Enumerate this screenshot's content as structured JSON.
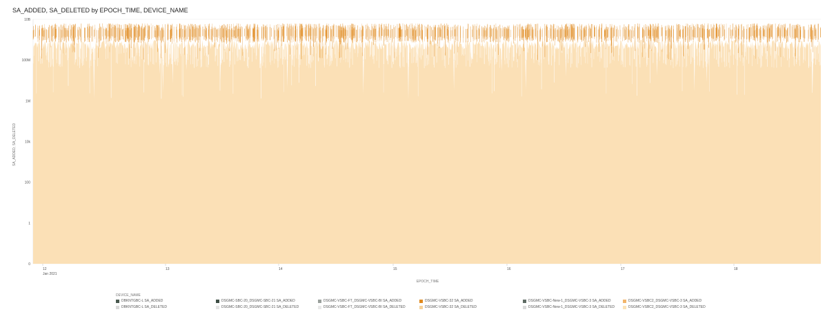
{
  "title": "SA_ADDED, SA_DELETED by EPOCH_TIME, DEVICE_NAME",
  "legend_title": "DEVICE_NAME",
  "legend": [
    {
      "label": "DBKNTGBC-L SA_ADDED",
      "color": "#4a5a50"
    },
    {
      "label": "DBKNTGBC-L SA_DELETED",
      "color": "#d9d9d9"
    },
    {
      "label": "DSGMC-SBC-20_DSGMC-SBC-21 SA_ADDED",
      "color": "#3f4f46"
    },
    {
      "label": "DSGMC-SBC-20_DSGMC-SBC-21 SA_DELETED",
      "color": "#e4e4e4"
    },
    {
      "label": "DSGMC-VSBC-FT_DSGMC-VSBC-BI SA_ADDED",
      "color": "#9aa09c"
    },
    {
      "label": "DSGMC-VSBC-FT_DSGMC-VSBC-BI SA_DELETED",
      "color": "#e8e8e8"
    },
    {
      "label": "DSGMC-VSBC-32 SA_ADDED",
      "color": "#e08a1e"
    },
    {
      "label": "DSGMC-VSBC-32 SA_DELETED",
      "color": "#f6d29a"
    },
    {
      "label": "DSGMC-VSBC-New-1_DSGMC-VSBC-3 SA_ADDED",
      "color": "#5f6b64"
    },
    {
      "label": "DSGMC-VSBC-New-1_DSGMC-VSBC-3 SA_DELETED",
      "color": "#dadada"
    },
    {
      "label": "DSGMC-VSBC2_DSGMC-VSBC-3 SA_ADDED",
      "color": "#f2b56b"
    },
    {
      "label": "DSGMC-VSBC2_DSGMC-VSBC-3 SA_DELETED",
      "color": "#fbe3b8"
    }
  ],
  "chart_data": {
    "type": "area",
    "title": "SA_ADDED, SA_DELETED by EPOCH_TIME, DEVICE_NAME",
    "xlabel": "EPOCH_TIME",
    "ylabel": "SA_ADDED, SA_DELETED",
    "y_scale": "log",
    "y_ticks": [
      "0",
      "1",
      "100",
      "10k",
      "1M",
      "100M",
      "10B"
    ],
    "x_ticks": [
      "12",
      "13",
      "14",
      "15",
      "16",
      "17",
      "18"
    ],
    "x_subtick": "Jan 2021",
    "grid": true,
    "legend_placement": "bottom",
    "colors": {
      "fill": "#fbe0b6",
      "added": "#e08a1e",
      "deleted": "#ffffff"
    },
    "series": [
      {
        "name": "DSGMC-VSBC-32 SA_DELETED",
        "typical_value": "1B (noisy, dips toward 1M–10k)"
      },
      {
        "name": "DSGMC-VSBC-32 SA_ADDED",
        "typical_value": "2B (noisy, 1B–5B)"
      }
    ]
  }
}
